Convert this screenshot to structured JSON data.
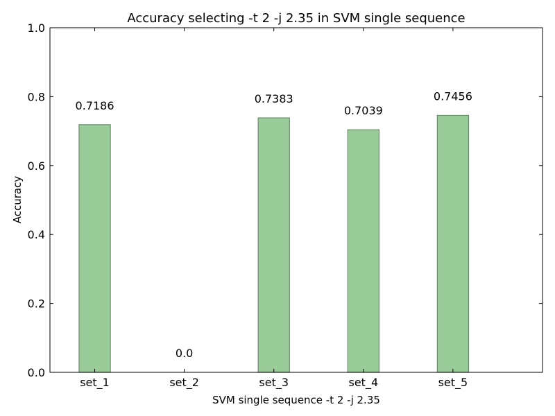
{
  "chart_data": {
    "type": "bar",
    "title": "Accuracy selecting -t 2 -j 2.35 in SVM single sequence",
    "xlabel": "SVM single sequence -t 2 -j 2.35",
    "ylabel": "Accuracy",
    "categories": [
      "set_1",
      "set_2",
      "set_3",
      "set_4",
      "set_5"
    ],
    "values": [
      0.7186,
      0.0,
      0.7383,
      0.7039,
      0.7456
    ],
    "value_labels": [
      "0.7186",
      "0.0",
      "0.7383",
      "0.7039",
      "0.7456"
    ],
    "ylim": [
      0,
      1.0
    ],
    "yticks": [
      {
        "value": 0.0,
        "label": "0.0"
      },
      {
        "value": 0.2,
        "label": "0.2"
      },
      {
        "value": 0.4,
        "label": "0.4"
      },
      {
        "value": 0.6,
        "label": "0.6"
      },
      {
        "value": 0.8,
        "label": "0.8"
      },
      {
        "value": 1.0,
        "label": "1.0"
      }
    ],
    "grid": false,
    "legend": "none",
    "colors": {
      "bar_fill": "#99cc99",
      "bar_edge": "#6f8a6f",
      "axes": "#000000"
    }
  }
}
